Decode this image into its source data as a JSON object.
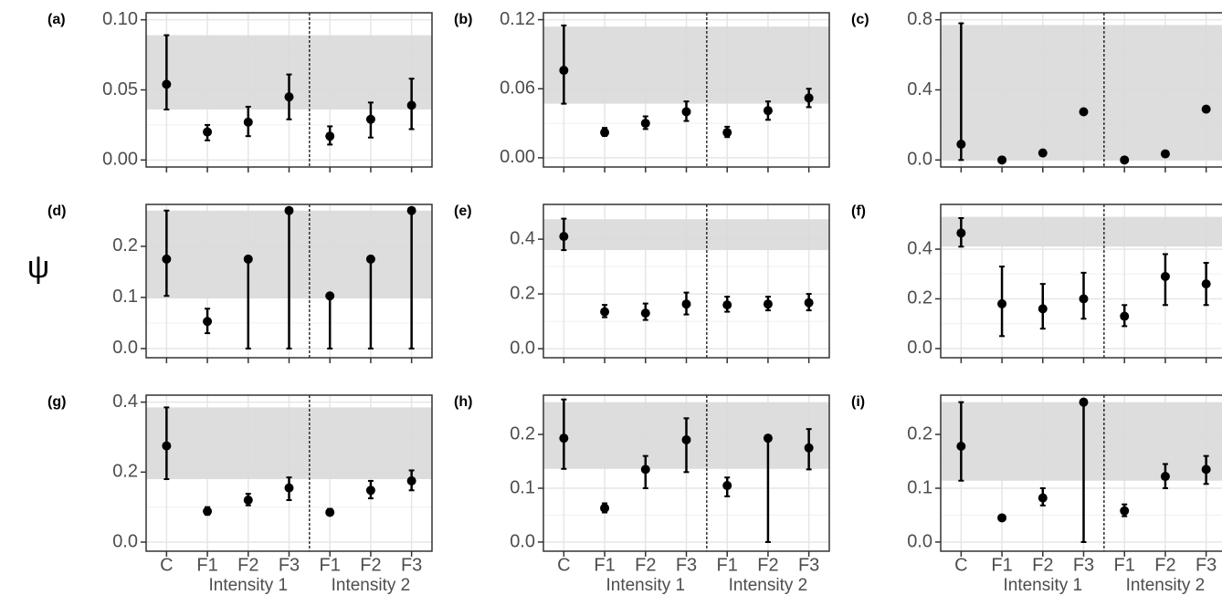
{
  "y_label": "ψ",
  "chart_data": [
    {
      "type": "pointrange",
      "label": "(a)",
      "color": "#000000",
      "band_color": "#d9d9d9",
      "grid": true,
      "values": [
        0.054,
        0.02,
        0.027,
        0.045,
        0.017,
        0.029,
        0.039
      ],
      "low": [
        0.036,
        0.014,
        0.017,
        0.029,
        0.011,
        0.016,
        0.022
      ],
      "high": [
        0.089,
        0.025,
        0.038,
        0.061,
        0.024,
        0.041,
        0.058
      ],
      "band": [
        0.036,
        0.089
      ],
      "ylim": [
        -0.005,
        0.105
      ],
      "yticks": [
        {
          "value": 0,
          "label": "0.00"
        },
        0.05,
        {
          "value": 0.1,
          "label": "0.10"
        }
      ]
    },
    {
      "type": "pointrange",
      "label": "(b)",
      "color": "#000000",
      "band_color": "#d9d9d9",
      "grid": true,
      "values": [
        0.076,
        0.022,
        0.03,
        0.04,
        0.022,
        0.041,
        0.052
      ],
      "low": [
        0.047,
        0.019,
        0.025,
        0.032,
        0.018,
        0.033,
        0.044
      ],
      "high": [
        0.115,
        0.026,
        0.036,
        0.049,
        0.027,
        0.049,
        0.06
      ],
      "band": [
        0.047,
        0.114
      ],
      "ylim": [
        -0.008,
        0.126
      ],
      "yticks": [
        {
          "value": 0,
          "label": "0.00"
        },
        0.06,
        0.12
      ]
    },
    {
      "type": "pointrange",
      "label": "(c)",
      "color": "#000000",
      "band_color": "#d9d9d9",
      "grid": true,
      "values": [
        0.09,
        0.0,
        0.04,
        0.275,
        0.0,
        0.035,
        0.29
      ],
      "low": [
        0.0,
        0.0,
        0.04,
        0.26,
        0.0,
        0.035,
        0.28
      ],
      "high": [
        0.78,
        0.0,
        0.04,
        0.29,
        0.0,
        0.035,
        0.3
      ],
      "band": [
        0.0,
        0.77
      ],
      "ylim": [
        -0.04,
        0.84
      ],
      "yticks": [
        {
          "value": 0,
          "label": "0.0"
        },
        0.4,
        0.8
      ]
    },
    {
      "type": "pointrange",
      "label": "(d)",
      "color": "#000000",
      "band_color": "#d9d9d9",
      "grid": true,
      "values": [
        0.175,
        0.053,
        0.175,
        0.27,
        0.103,
        0.175,
        0.27
      ],
      "low": [
        0.103,
        0.03,
        0.0,
        0.0,
        0.0,
        0.0,
        0.0
      ],
      "high": [
        0.27,
        0.078,
        0.175,
        0.27,
        0.103,
        0.175,
        0.27
      ],
      "band": [
        0.098,
        0.27
      ],
      "ylim": [
        -0.018,
        0.282
      ],
      "yticks": [
        {
          "value": 0,
          "label": "0.0"
        },
        0.1,
        0.2
      ]
    },
    {
      "type": "pointrange",
      "label": "(e)",
      "color": "#000000",
      "band_color": "#d9d9d9",
      "grid": true,
      "values": [
        0.41,
        0.135,
        0.13,
        0.163,
        0.16,
        0.163,
        0.168
      ],
      "low": [
        0.36,
        0.115,
        0.105,
        0.125,
        0.135,
        0.14,
        0.14
      ],
      "high": [
        0.475,
        0.16,
        0.165,
        0.205,
        0.19,
        0.19,
        0.2
      ],
      "band": [
        0.36,
        0.473
      ],
      "ylim": [
        -0.033,
        0.527
      ],
      "yticks": [
        {
          "value": 0,
          "label": "0.0"
        },
        0.2,
        0.4
      ]
    },
    {
      "type": "pointrange",
      "label": "(f)",
      "color": "#000000",
      "band_color": "#d9d9d9",
      "grid": true,
      "values": [
        0.465,
        0.18,
        0.16,
        0.2,
        0.13,
        0.29,
        0.26
      ],
      "low": [
        0.41,
        0.05,
        0.08,
        0.12,
        0.09,
        0.175,
        0.175
      ],
      "high": [
        0.525,
        0.33,
        0.26,
        0.305,
        0.175,
        0.38,
        0.345
      ],
      "band": [
        0.41,
        0.53
      ],
      "ylim": [
        -0.037,
        0.58
      ],
      "yticks": [
        {
          "value": 0,
          "label": "0.0"
        },
        0.2,
        0.4
      ]
    },
    {
      "type": "pointrange",
      "label": "(g)",
      "color": "#000000",
      "band_color": "#d9d9d9",
      "grid": true,
      "categories": [
        "C",
        "F1",
        "F2",
        "F3",
        "F1",
        "F2",
        "F3"
      ],
      "groups": [
        "Intensity 1",
        "Intensity 2"
      ],
      "values": [
        0.275,
        0.088,
        0.12,
        0.155,
        0.085,
        0.148,
        0.175
      ],
      "low": [
        0.18,
        0.078,
        0.105,
        0.12,
        0.077,
        0.125,
        0.148
      ],
      "high": [
        0.385,
        0.1,
        0.138,
        0.185,
        0.095,
        0.175,
        0.205
      ],
      "band": [
        0.18,
        0.385
      ],
      "ylim": [
        -0.026,
        0.42
      ],
      "yticks": [
        {
          "value": 0,
          "label": "0.0"
        },
        0.2,
        0.4
      ]
    },
    {
      "type": "pointrange",
      "label": "(h)",
      "color": "#000000",
      "band_color": "#d9d9d9",
      "grid": true,
      "categories": [
        "C",
        "F1",
        "F2",
        "F3",
        "F1",
        "F2",
        "F3"
      ],
      "groups": [
        "Intensity 1",
        "Intensity 2"
      ],
      "values": [
        0.193,
        0.063,
        0.135,
        0.19,
        0.105,
        0.193,
        0.175
      ],
      "low": [
        0.136,
        0.055,
        0.1,
        0.13,
        0.085,
        0.0,
        0.135
      ],
      "high": [
        0.265,
        0.072,
        0.16,
        0.23,
        0.12,
        0.193,
        0.21
      ],
      "band": [
        0.136,
        0.26
      ],
      "ylim": [
        -0.017,
        0.273
      ],
      "yticks": [
        {
          "value": 0,
          "label": "0.0"
        },
        0.1,
        0.2
      ]
    },
    {
      "type": "pointrange",
      "label": "(i)",
      "color": "#000000",
      "band_color": "#d9d9d9",
      "grid": true,
      "categories": [
        "C",
        "F1",
        "F2",
        "F3",
        "F1",
        "F2",
        "F3"
      ],
      "groups": [
        "Intensity 1",
        "Intensity 2"
      ],
      "values": [
        0.178,
        0.045,
        0.082,
        0.26,
        0.058,
        0.122,
        0.135
      ],
      "low": [
        0.114,
        0.04,
        0.068,
        0.0,
        0.048,
        0.1,
        0.108
      ],
      "high": [
        0.26,
        0.05,
        0.1,
        0.26,
        0.07,
        0.145,
        0.16
      ],
      "band": [
        0.114,
        0.26
      ],
      "ylim": [
        -0.017,
        0.273
      ],
      "yticks": [
        {
          "value": 0,
          "label": "0.0"
        },
        0.1,
        0.2
      ]
    }
  ]
}
